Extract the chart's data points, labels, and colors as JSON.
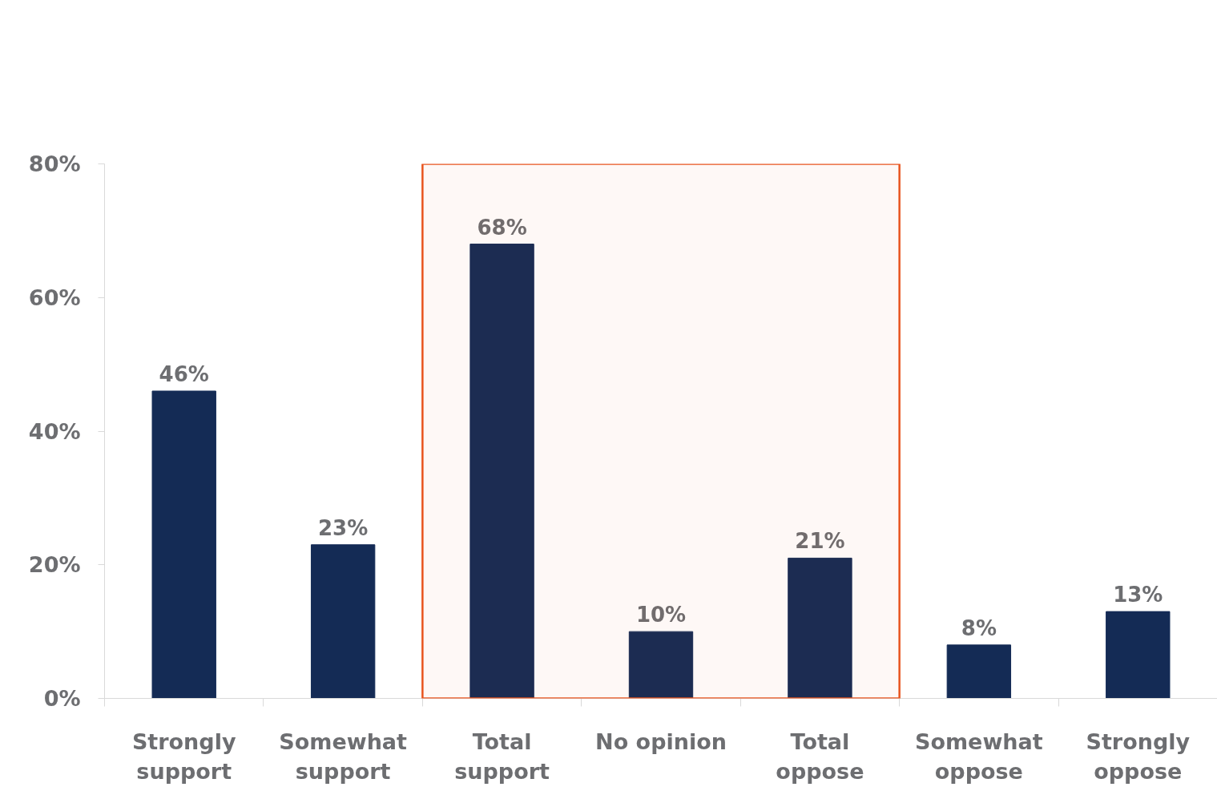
{
  "chart_data": {
    "type": "bar",
    "categories": [
      "Strongly support",
      "Somewhat support",
      "Total support",
      "No opinion",
      "Total oppose",
      "Somewhat oppose",
      "Strongly oppose"
    ],
    "values": [
      46,
      23,
      68,
      10,
      21,
      8,
      13
    ],
    "color": "#142b55",
    "ylim": [
      0,
      80
    ],
    "yticks": [
      {
        "value": 0,
        "label": "0%"
      },
      {
        "value": 20,
        "label": "20%"
      },
      {
        "value": 40,
        "label": "40%"
      },
      {
        "value": 60,
        "label": "60%"
      },
      {
        "value": 80,
        "label": "80%"
      }
    ],
    "value_labels": [
      "46%",
      "23%",
      "68%",
      "10%",
      "21%",
      "8%",
      "13%"
    ],
    "bands": [
      {
        "axis": "x",
        "from": "Total support",
        "to": "Total oppose",
        "color": "#e8541e"
      }
    ],
    "grid": false
  }
}
